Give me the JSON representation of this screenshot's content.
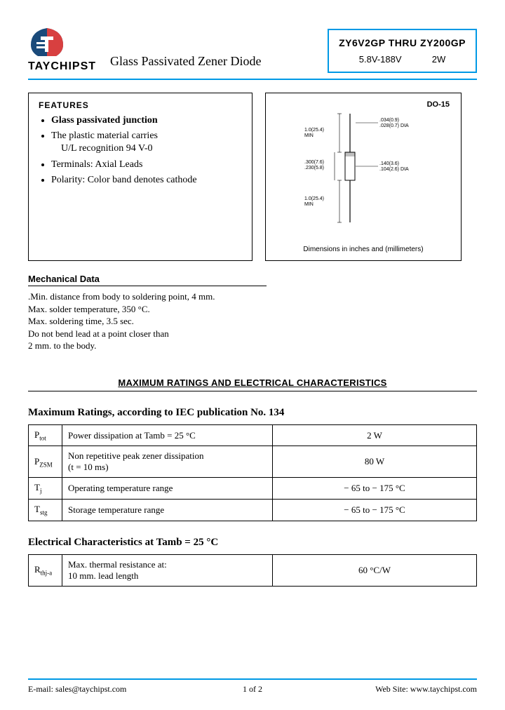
{
  "brand": "TAYCHIPST",
  "subtitle": "Glass Passivated Zener Diode",
  "titleBox": {
    "line1": "ZY6V2GP  THRU  ZY200GP",
    "voltage": "5.8V-188V",
    "power": "2W"
  },
  "features": {
    "heading": "FEATURES",
    "items": [
      {
        "text": "Glass passivated junction",
        "bold": true
      },
      {
        "text": "The plastic material carries",
        "sub": "U/L recognition 94 V-0"
      },
      {
        "text": "Terminals: Axial Leads"
      },
      {
        "text": "Polarity: Color band denotes cathode"
      }
    ]
  },
  "package": {
    "label": "DO-15",
    "caption": "Dimensions in inches and (millimeters)",
    "dims": {
      "leadLenTop": "1.0(25.4)\nMIN",
      "leadLenBot": "1.0(25.4)\nMIN",
      "bodyLen": ".300(7.6)\n.230(5.8)",
      "leadDia": ".034(0.9)\n.028(0.7)",
      "bodyDia": ".140(3.6)\n.104(2.6)"
    }
  },
  "mechanical": {
    "heading": "Mechanical Data",
    "body": ".Min. distance from body to soldering point, 4 mm.\nMax. solder temperature, 350 °C.\n Max. soldering time, 3.5 sec.\n Do not bend lead at a point closer than\n  2 mm. to the body."
  },
  "sectionTitle": "MAXIMUM RATINGS AND ELECTRICAL CHARACTERISTICS",
  "maxRatings": {
    "title": "Maximum Ratings, according to IEC publication No. 134",
    "rows": [
      {
        "sym": "P",
        "sub": "tot",
        "desc": "Power dissipation at Tamb = 25 °C",
        "val": "2 W"
      },
      {
        "sym": "P",
        "sub": "ZSM",
        "desc": "Non repetitive peak zener dissipation\n(t = 10 ms)",
        "val": "80 W"
      },
      {
        "sym": "T",
        "sub": "j",
        "desc": "Operating temperature range",
        "val": "− 65 to − 175 °C"
      },
      {
        "sym": "T",
        "sub": "stg",
        "desc": "Storage temperature range",
        "val": "− 65 to − 175 °C"
      }
    ]
  },
  "elecChar": {
    "title": "Electrical Characteristics at Tamb = 25 °C",
    "rows": [
      {
        "sym": "R",
        "sub": "thj-a",
        "desc": "Max. thermal resistance at:\n10 mm. lead length",
        "val": "60 °C/W"
      }
    ]
  },
  "footer": {
    "email_label": "E-mail: ",
    "email": "sales@taychipst.com",
    "page": "1  of   2",
    "web_label": "Web Site: ",
    "web": "www.taychipst.com"
  },
  "colors": {
    "accent": "#0099e5",
    "logoDark": "#1a4a7a",
    "logoRed": "#d84040"
  }
}
